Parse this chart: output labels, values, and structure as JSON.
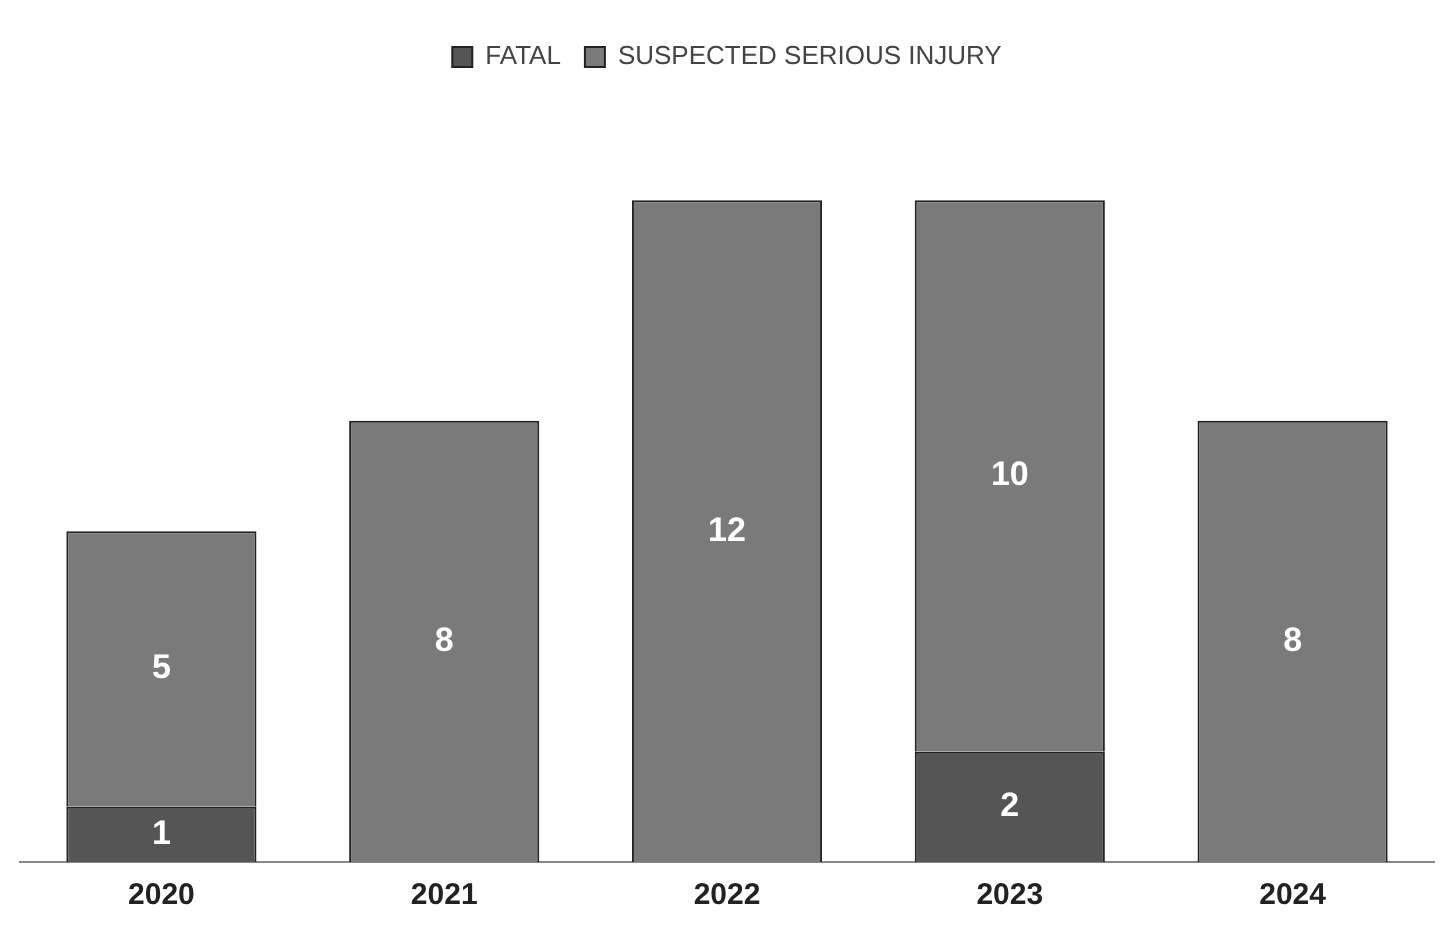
{
  "chart_data": {
    "type": "bar",
    "stacked": true,
    "legend": "top",
    "categories": [
      "2020",
      "2021",
      "2022",
      "2023",
      "2024"
    ],
    "series": [
      {
        "name": "FATAL",
        "color": "#555555",
        "values": [
          1,
          0,
          0,
          2,
          0
        ],
        "value_labels": [
          "1",
          null,
          null,
          "2",
          null
        ]
      },
      {
        "name": "SUSPECTED SERIOUS INJURY",
        "color": "#7a7a7a",
        "values": [
          5,
          8,
          12,
          10,
          8
        ],
        "value_labels": [
          "5",
          "8",
          "12",
          "10",
          "8"
        ]
      }
    ]
  }
}
